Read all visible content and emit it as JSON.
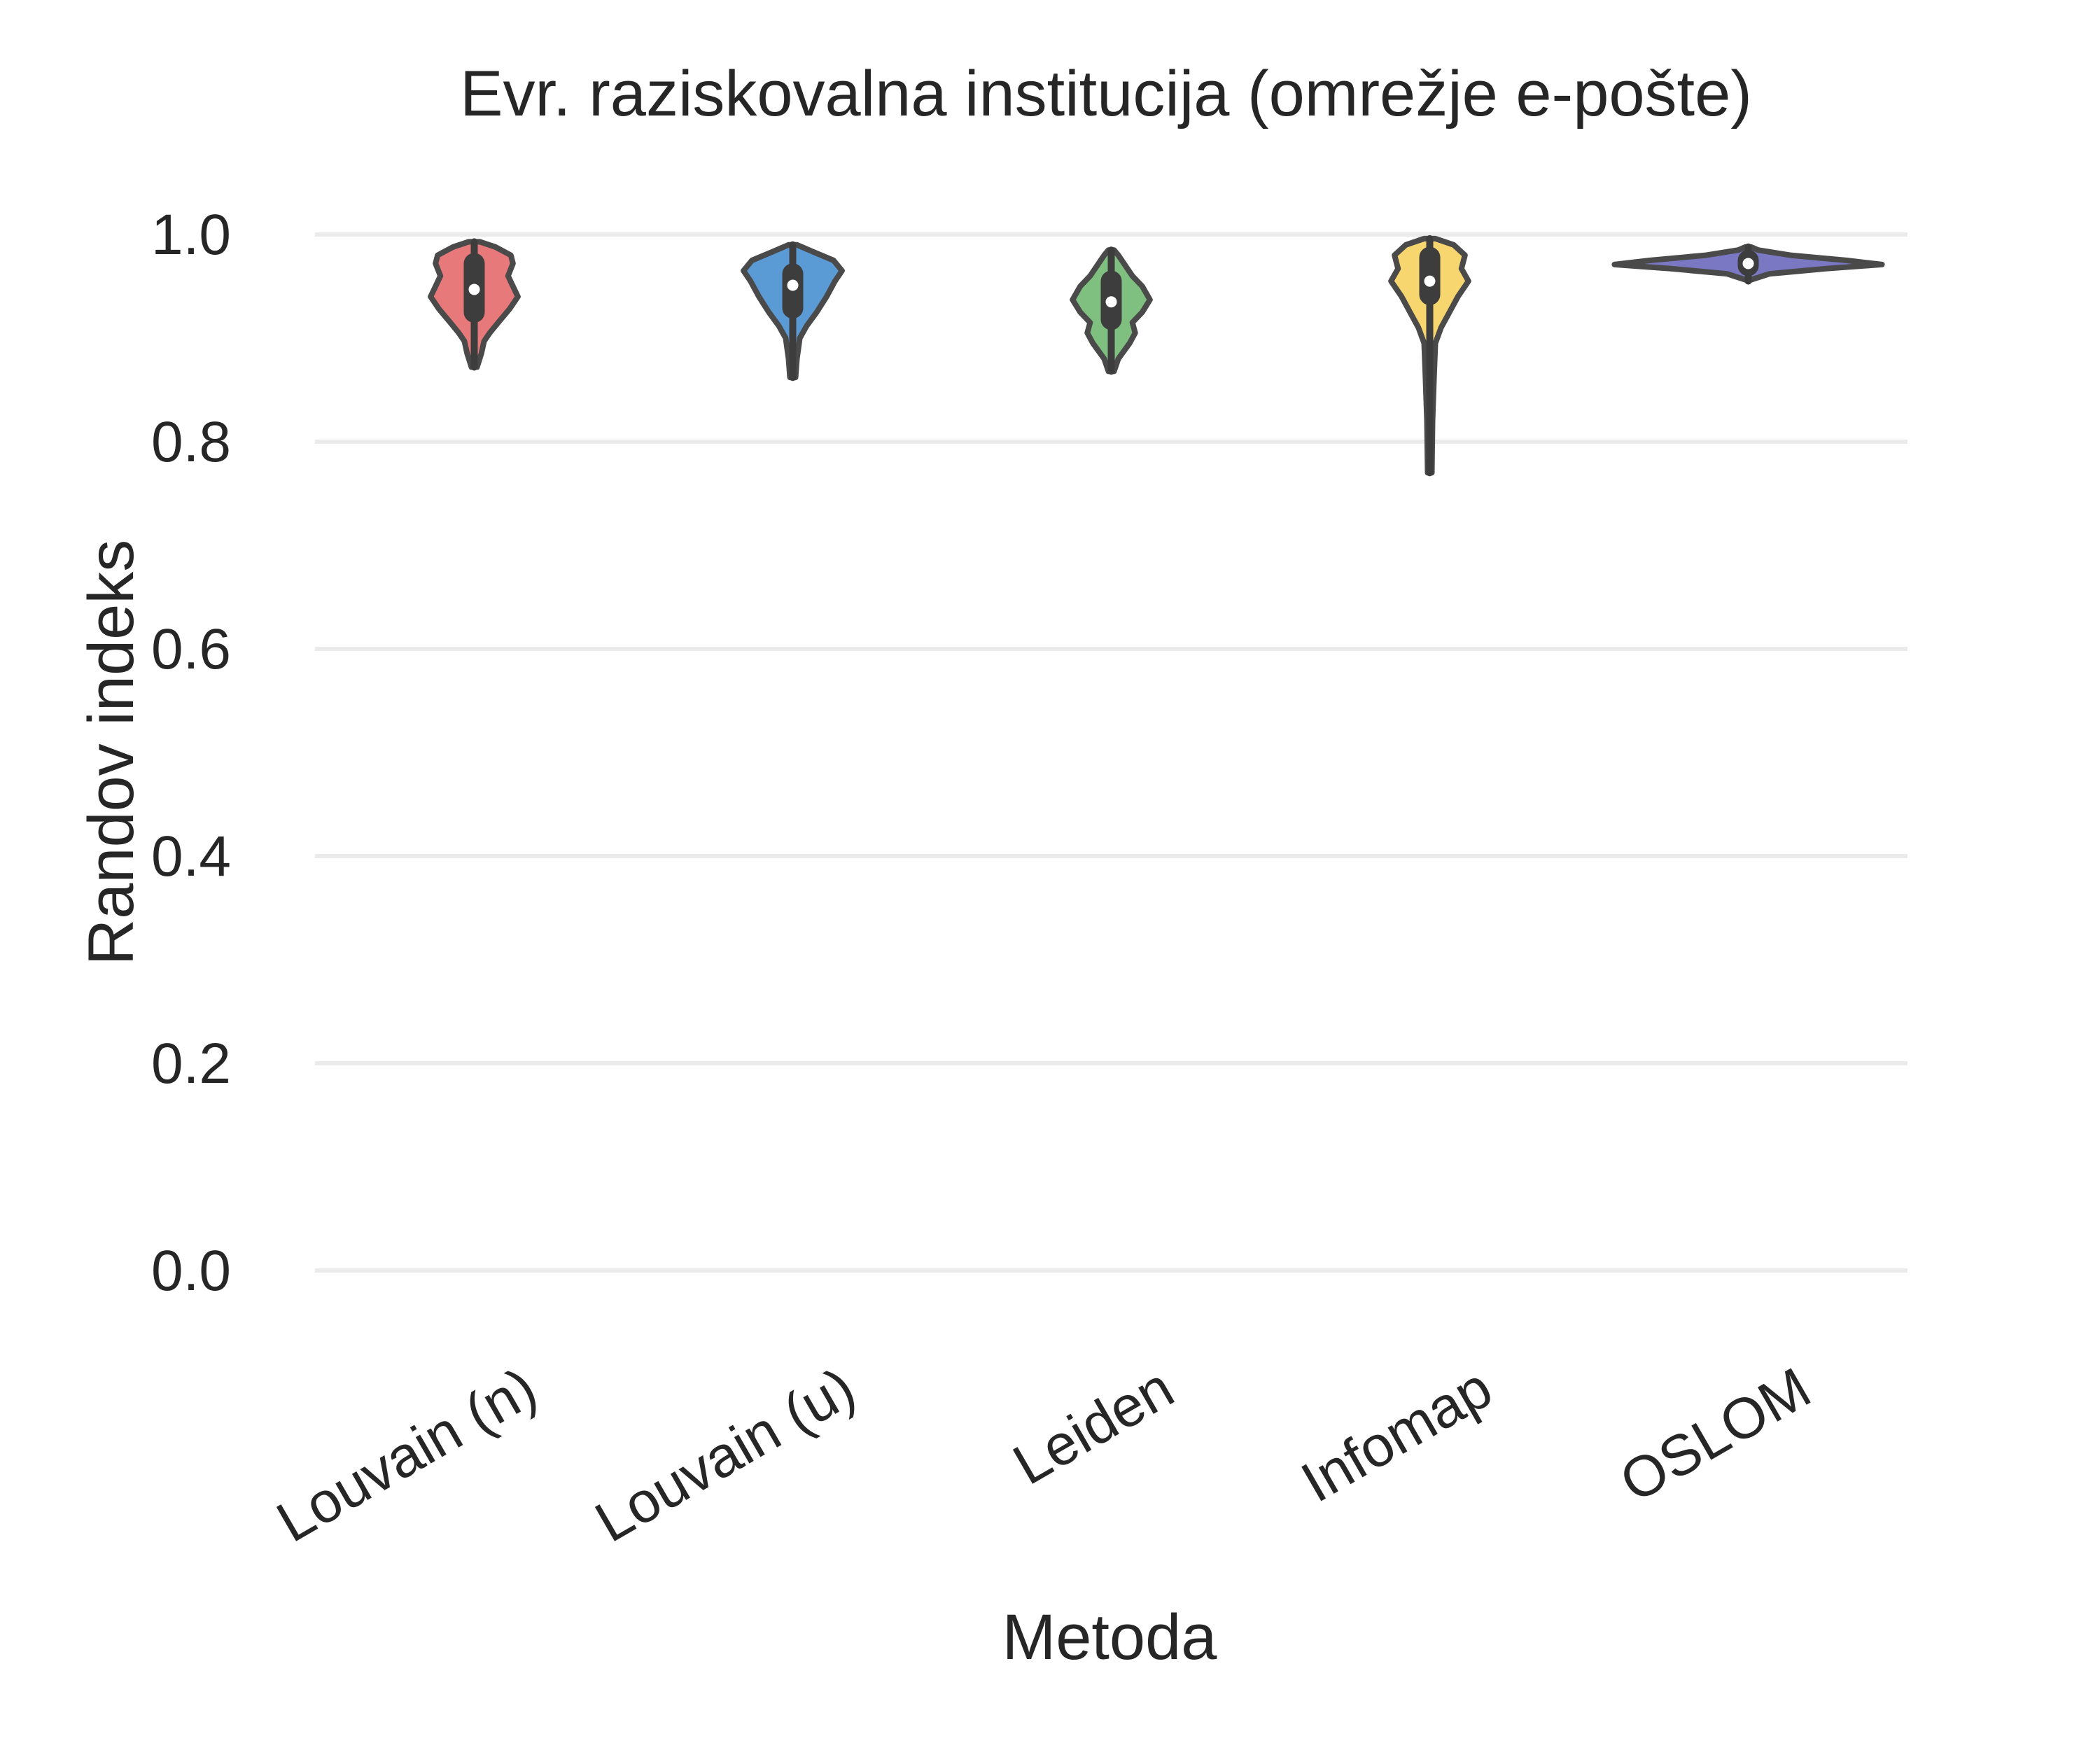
{
  "chart_data": {
    "type": "violin",
    "title": "Evr. raziskovalna institucija  (omrežje e-pošte)",
    "xlabel": "Metoda",
    "ylabel": "Randov indeks",
    "ylim": [
      -0.09,
      1.05
    ],
    "yticks": [
      "0.0",
      "0.2",
      "0.4",
      "0.6",
      "0.8",
      "1.0"
    ],
    "grid": true,
    "categories": [
      "Louvain (n)",
      "Louvain (u)",
      "Leiden",
      "Infomap",
      "OSLOM"
    ],
    "series": [
      {
        "category": "Louvain (n)",
        "color": "#e8797b",
        "min": 0.872,
        "q1": 0.925,
        "median": 0.947,
        "q3": 0.972,
        "max": 0.993,
        "profile": [
          [
            0.872,
            0.004
          ],
          [
            0.885,
            0.01
          ],
          [
            0.897,
            0.014
          ],
          [
            0.905,
            0.022
          ],
          [
            0.915,
            0.034
          ],
          [
            0.928,
            0.05
          ],
          [
            0.94,
            0.062
          ],
          [
            0.95,
            0.055
          ],
          [
            0.96,
            0.048
          ],
          [
            0.972,
            0.055
          ],
          [
            0.98,
            0.052
          ],
          [
            0.988,
            0.03
          ],
          [
            0.993,
            0.008
          ]
        ]
      },
      {
        "category": "Louvain (u)",
        "color": "#5b9bd5",
        "min": 0.862,
        "q1": 0.929,
        "median": 0.951,
        "q3": 0.962,
        "max": 0.99,
        "profile": [
          [
            0.862,
            0.004
          ],
          [
            0.88,
            0.006
          ],
          [
            0.9,
            0.01
          ],
          [
            0.912,
            0.02
          ],
          [
            0.925,
            0.034
          ],
          [
            0.94,
            0.048
          ],
          [
            0.955,
            0.06
          ],
          [
            0.965,
            0.07
          ],
          [
            0.975,
            0.058
          ],
          [
            0.983,
            0.03
          ],
          [
            0.99,
            0.006
          ]
        ]
      },
      {
        "category": "Leiden",
        "color": "#7fbf80",
        "min": 0.868,
        "q1": 0.918,
        "median": 0.935,
        "q3": 0.955,
        "max": 0.985,
        "profile": [
          [
            0.868,
            0.004
          ],
          [
            0.88,
            0.01
          ],
          [
            0.895,
            0.026
          ],
          [
            0.905,
            0.034
          ],
          [
            0.915,
            0.03
          ],
          [
            0.925,
            0.044
          ],
          [
            0.937,
            0.055
          ],
          [
            0.95,
            0.044
          ],
          [
            0.96,
            0.03
          ],
          [
            0.972,
            0.018
          ],
          [
            0.98,
            0.01
          ],
          [
            0.985,
            0.004
          ]
        ]
      },
      {
        "category": "Infomap",
        "color": "#f7d56f",
        "min": 0.77,
        "q1": 0.942,
        "median": 0.955,
        "q3": 0.978,
        "max": 0.996,
        "profile": [
          [
            0.77,
            0.003
          ],
          [
            0.82,
            0.004
          ],
          [
            0.86,
            0.006
          ],
          [
            0.895,
            0.008
          ],
          [
            0.91,
            0.016
          ],
          [
            0.925,
            0.028
          ],
          [
            0.94,
            0.04
          ],
          [
            0.955,
            0.055
          ],
          [
            0.967,
            0.045
          ],
          [
            0.98,
            0.05
          ],
          [
            0.99,
            0.034
          ],
          [
            0.996,
            0.008
          ]
        ]
      },
      {
        "category": "OSLOM",
        "color": "#7a78c2",
        "min": 0.955,
        "q1": 0.97,
        "median": 0.972,
        "q3": 0.975,
        "max": 0.988,
        "profile": [
          [
            0.956,
            0.003
          ],
          [
            0.962,
            0.03
          ],
          [
            0.967,
            0.11
          ],
          [
            0.971,
            0.19
          ],
          [
            0.975,
            0.14
          ],
          [
            0.98,
            0.06
          ],
          [
            0.985,
            0.014
          ],
          [
            0.988,
            0.004
          ]
        ]
      }
    ]
  }
}
